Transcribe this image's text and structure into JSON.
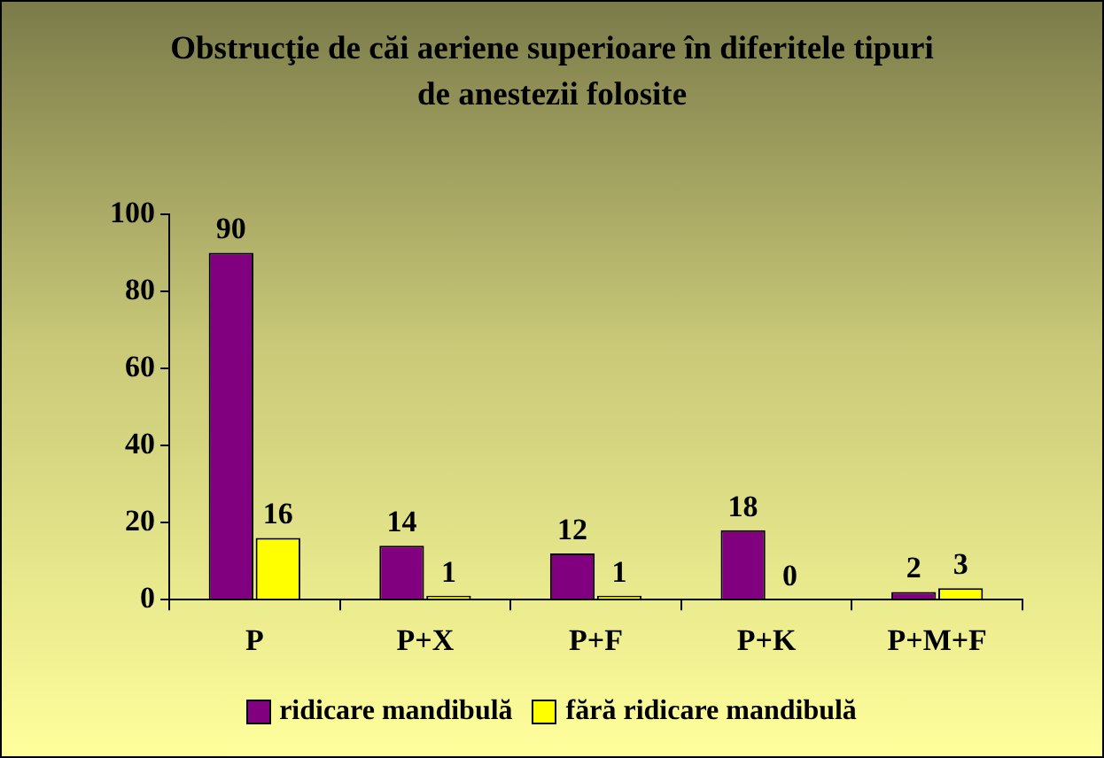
{
  "chart_data": {
    "type": "bar",
    "title": "Obstrucţie de căi aeriene superioare în diferitele tipuri de anestezii folosite",
    "categories": [
      "P",
      "P+X",
      "P+F",
      "P+K",
      "P+M+F"
    ],
    "series": [
      {
        "name": "ridicare mandibulă",
        "color": "#800080",
        "values": [
          90,
          14,
          12,
          18,
          2
        ]
      },
      {
        "name": "fără ridicare mandibulă",
        "color": "#ffff00",
        "values": [
          16,
          1,
          1,
          0,
          3
        ]
      }
    ],
    "ylim": [
      0,
      100
    ],
    "yticks": [
      0,
      20,
      40,
      60,
      80,
      100
    ],
    "grid": false,
    "legend": "bottom",
    "data_labels": true
  }
}
